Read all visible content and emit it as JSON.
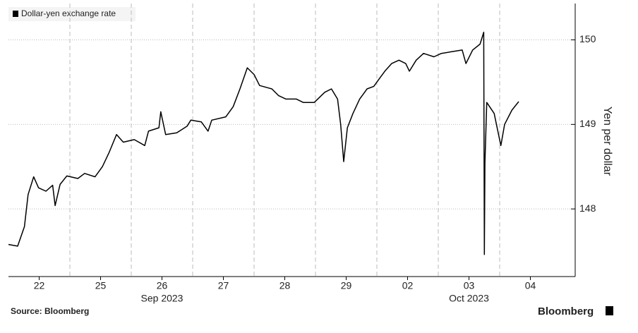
{
  "chart_data": {
    "type": "line",
    "legend_label": "Dollar-yen exchange rate",
    "y_label": "Yen per dollar",
    "x_sublabels": [
      {
        "value": 2.5,
        "label": "Sep 2023"
      },
      {
        "value": 7.5,
        "label": "Oct 2023"
      }
    ],
    "source": "Source: Bloomberg",
    "brand": "Bloomberg",
    "xlim": [
      0,
      9
    ],
    "ylim": [
      147.2,
      150.43
    ],
    "xticks": [
      {
        "value": 0.5,
        "label": "22"
      },
      {
        "value": 1.5,
        "label": "25"
      },
      {
        "value": 2.5,
        "label": "26"
      },
      {
        "value": 3.5,
        "label": "27"
      },
      {
        "value": 4.5,
        "label": "28"
      },
      {
        "value": 5.5,
        "label": "29"
      },
      {
        "value": 6.5,
        "label": "02"
      },
      {
        "value": 7.5,
        "label": "03"
      },
      {
        "value": 8.5,
        "label": "04"
      }
    ],
    "yticks": [
      148,
      149,
      150
    ],
    "grid": true,
    "series": [
      {
        "name": "Dollar-yen exchange rate",
        "color": "#000000",
        "x": [
          0,
          0.15,
          0.26,
          0.32,
          0.41,
          0.49,
          0.61,
          0.72,
          0.76,
          0.84,
          0.95,
          1.13,
          1.24,
          1.41,
          1.53,
          1.64,
          1.76,
          1.87,
          2.05,
          2.22,
          2.28,
          2.45,
          2.48,
          2.56,
          2.74,
          2.91,
          2.97,
          3.14,
          3.25,
          3.31,
          3.54,
          3.66,
          3.77,
          3.89,
          4.0,
          4.09,
          4.29,
          4.4,
          4.52,
          4.69,
          4.8,
          4.98,
          5.15,
          5.26,
          5.36,
          5.41,
          5.46,
          5.52,
          5.61,
          5.72,
          5.84,
          5.95,
          6.05,
          6.13,
          6.24,
          6.36,
          6.47,
          6.53,
          6.64,
          6.76,
          6.93,
          7.05,
          7.22,
          7.39,
          7.45,
          7.56,
          7.68,
          7.74,
          7.75,
          7.76,
          7.79,
          7.91,
          7.97,
          8.02,
          8.08,
          8.2,
          8.31
        ],
        "values": [
          147.58,
          147.56,
          147.79,
          148.17,
          148.38,
          148.25,
          148.21,
          148.28,
          148.04,
          148.29,
          148.39,
          148.36,
          148.42,
          148.38,
          148.5,
          148.67,
          148.88,
          148.79,
          148.82,
          148.75,
          148.92,
          148.96,
          149.15,
          148.88,
          148.9,
          148.98,
          149.05,
          149.03,
          148.92,
          149.05,
          149.09,
          149.21,
          149.42,
          149.67,
          149.59,
          149.46,
          149.42,
          149.34,
          149.3,
          149.3,
          149.26,
          149.26,
          149.38,
          149.42,
          149.3,
          149.0,
          148.56,
          148.96,
          149.13,
          149.3,
          149.42,
          149.45,
          149.55,
          149.63,
          149.72,
          149.76,
          149.72,
          149.63,
          149.76,
          149.84,
          149.8,
          149.84,
          149.86,
          149.88,
          149.72,
          149.88,
          149.95,
          150.09,
          147.46,
          148.54,
          149.26,
          149.13,
          148.92,
          148.75,
          149.0,
          149.17,
          149.27
        ]
      }
    ]
  }
}
